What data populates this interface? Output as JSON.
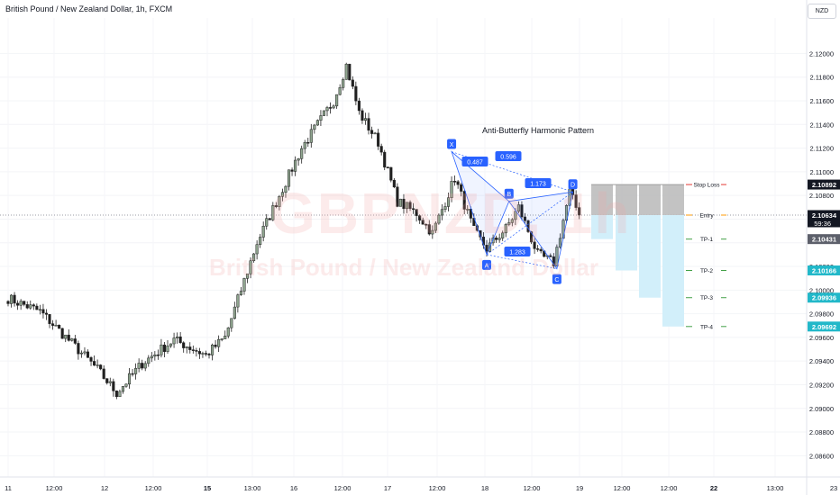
{
  "header": {
    "title": "British Pound / New Zealand Dollar, 1h, FXCM",
    "currency": "NZD"
  },
  "watermark": {
    "symbol": "GBPNZD, 1h",
    "name": "British Pound / New Zealand Dollar"
  },
  "colors": {
    "bull_candle": "#8fa58f",
    "bear_candle": "#1f1f1f",
    "pattern": "#2962ff",
    "stop_loss": "#e53935",
    "entry": "#ff9800",
    "take_profit": "#43a047",
    "tp_box": "#d2effa",
    "sl_box": "#bdbdbd"
  },
  "chart_data": {
    "type": "candlestick",
    "timeframe": "1h",
    "x_ticks": [
      "11",
      "12:00",
      "12",
      "12:00",
      "15",
      "13:00",
      "16",
      "12:00",
      "17",
      "12:00",
      "18",
      "12:00",
      "19",
      "12:00",
      "12:00",
      "22",
      "13:00",
      "23"
    ],
    "y_ticks": [
      2.12,
      2.118,
      2.116,
      2.114,
      2.112,
      2.11,
      2.108,
      2.106,
      2.104,
      2.102,
      2.1,
      2.098,
      2.096,
      2.094,
      2.092,
      2.09,
      2.088,
      2.086
    ],
    "y_tick_labels": [
      "2.12000",
      "2.11800",
      "2.11600",
      "2.11400",
      "2.11200",
      "2.11000",
      "2.10800",
      "",
      "",
      "2.10200",
      "2.10000",
      "2.09800",
      "2.09600",
      "2.09400",
      "2.09200",
      "2.09000",
      "2.08800",
      "2.08600"
    ],
    "ylim": [
      2.0842,
      2.123
    ],
    "price_labels": [
      {
        "price": 2.10892,
        "label": "2.10892",
        "style": "dark"
      },
      {
        "price": 2.10634,
        "label": "2.10634",
        "sub": "59:36",
        "style": "dark"
      },
      {
        "price": 2.10431,
        "label": "2.10431",
        "style": "grey"
      },
      {
        "price": 2.10166,
        "label": "2.10166",
        "style": "teal"
      },
      {
        "price": 2.09936,
        "label": "2.09936",
        "style": "teal"
      },
      {
        "price": 2.09692,
        "label": "2.09692",
        "style": "teal"
      }
    ],
    "current_price": 2.10634,
    "levels": [
      {
        "name": "Stop Loss",
        "price": 2.10892
      },
      {
        "name": "Entry",
        "price": 2.10634
      },
      {
        "name": "TP-1",
        "price": 2.10431
      },
      {
        "name": "TP-2",
        "price": 2.10166
      },
      {
        "name": "TP-3",
        "price": 2.09936
      },
      {
        "name": "TP-4",
        "price": 2.09692
      }
    ],
    "pattern": {
      "title": "Anti-Butterfly Harmonic Pattern",
      "points": [
        {
          "label": "X",
          "price": 2.1117
        },
        {
          "label": "A",
          "price": 2.103
        },
        {
          "label": "B",
          "price": 2.1075
        },
        {
          "label": "C",
          "price": 2.1018
        },
        {
          "label": "D",
          "price": 2.1083
        }
      ],
      "ratios": [
        "0.487",
        "0.596",
        "1.173",
        "1.283"
      ]
    },
    "series_anchors": [
      {
        "i": 0,
        "p": 2.0993
      },
      {
        "i": 10,
        "p": 2.0982
      },
      {
        "i": 20,
        "p": 2.0955
      },
      {
        "i": 28,
        "p": 2.0933
      },
      {
        "i": 34,
        "p": 2.0913
      },
      {
        "i": 42,
        "p": 2.0938
      },
      {
        "i": 52,
        "p": 2.0958
      },
      {
        "i": 62,
        "p": 2.0945
      },
      {
        "i": 68,
        "p": 2.096
      },
      {
        "i": 78,
        "p": 2.104
      },
      {
        "i": 92,
        "p": 2.112
      },
      {
        "i": 102,
        "p": 2.116
      },
      {
        "i": 106,
        "p": 2.119
      },
      {
        "i": 110,
        "p": 2.115
      },
      {
        "i": 116,
        "p": 2.1125
      },
      {
        "i": 122,
        "p": 2.1075
      },
      {
        "i": 128,
        "p": 2.1065
      },
      {
        "i": 133,
        "p": 2.1048
      },
      {
        "i": 140,
        "p": 2.1095
      },
      {
        "i": 146,
        "p": 2.105
      },
      {
        "i": 150,
        "p": 2.1035
      },
      {
        "i": 156,
        "p": 2.1052
      },
      {
        "i": 160,
        "p": 2.107
      },
      {
        "i": 166,
        "p": 2.103
      },
      {
        "i": 171,
        "p": 2.1023
      },
      {
        "i": 176,
        "p": 2.1083
      },
      {
        "i": 179,
        "p": 2.10634
      }
    ]
  }
}
